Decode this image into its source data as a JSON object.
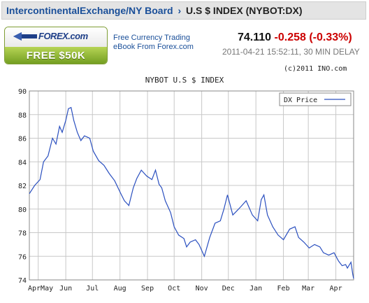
{
  "header": {
    "link_label": "IntercontinentalExchange/NY Board",
    "separator": "›",
    "current": "U.S $ INDEX (NYBOT:DX)"
  },
  "ad": {
    "logo_text": "FOREX.com",
    "button_label": "FREE $50K",
    "brand_color": "#1e3f88",
    "button_color": "#8db431"
  },
  "promo": {
    "line1": "Free Currency Trading",
    "line2": "eBook From Forex.com"
  },
  "quote": {
    "last": "74.110",
    "change": "-0.258 (-0.33%)",
    "timestamp": "2011-04-21 15:52:11, 30 MIN DELAY",
    "change_color": "#cc0000"
  },
  "chart_data": {
    "type": "line",
    "title": "NYBOT U.S $ INDEX",
    "copyright": "(c)2011 INO.com",
    "legend": "DX Price",
    "legend_position": "top-right",
    "grid": true,
    "line_color": "#2a4fbf",
    "ylim": [
      74,
      90
    ],
    "yticks": [
      74,
      76,
      78,
      80,
      82,
      84,
      86,
      88,
      90
    ],
    "xticks": [
      "AprMay",
      "Jun",
      "Jul",
      "Aug",
      "Sep",
      "Oct",
      "Nov",
      "Dec",
      "Jan",
      "Feb",
      "Mar",
      "Apr"
    ],
    "series": [
      {
        "name": "DX Price",
        "points": [
          [
            "2010-04-21",
            81.3
          ],
          [
            "2010-04-27",
            82.0
          ],
          [
            "2010-05-03",
            82.5
          ],
          [
            "2010-05-07",
            84.0
          ],
          [
            "2010-05-12",
            84.5
          ],
          [
            "2010-05-17",
            86.0
          ],
          [
            "2010-05-21",
            85.5
          ],
          [
            "2010-05-25",
            87.0
          ],
          [
            "2010-05-28",
            86.5
          ],
          [
            "2010-06-01",
            87.5
          ],
          [
            "2010-06-04",
            88.5
          ],
          [
            "2010-06-07",
            88.6
          ],
          [
            "2010-06-10",
            87.5
          ],
          [
            "2010-06-14",
            86.5
          ],
          [
            "2010-06-18",
            85.8
          ],
          [
            "2010-06-22",
            86.2
          ],
          [
            "2010-06-28",
            86.0
          ],
          [
            "2010-07-02",
            84.9
          ],
          [
            "2010-07-08",
            84.1
          ],
          [
            "2010-07-14",
            83.7
          ],
          [
            "2010-07-20",
            83.0
          ],
          [
            "2010-07-26",
            82.4
          ],
          [
            "2010-08-02",
            81.3
          ],
          [
            "2010-08-06",
            80.7
          ],
          [
            "2010-08-11",
            80.3
          ],
          [
            "2010-08-16",
            81.8
          ],
          [
            "2010-08-20",
            82.6
          ],
          [
            "2010-08-25",
            83.3
          ],
          [
            "2010-08-31",
            82.8
          ],
          [
            "2010-09-06",
            82.5
          ],
          [
            "2010-09-10",
            83.3
          ],
          [
            "2010-09-14",
            82.1
          ],
          [
            "2010-09-17",
            81.8
          ],
          [
            "2010-09-21",
            80.7
          ],
          [
            "2010-09-27",
            79.7
          ],
          [
            "2010-10-01",
            78.5
          ],
          [
            "2010-10-06",
            77.8
          ],
          [
            "2010-10-12",
            77.5
          ],
          [
            "2010-10-15",
            76.8
          ],
          [
            "2010-10-19",
            77.2
          ],
          [
            "2010-10-25",
            77.4
          ],
          [
            "2010-10-29",
            77.0
          ],
          [
            "2010-11-04",
            76.0
          ],
          [
            "2010-11-10",
            77.6
          ],
          [
            "2010-11-16",
            78.8
          ],
          [
            "2010-11-22",
            79.0
          ],
          [
            "2010-11-26",
            80.0
          ],
          [
            "2010-11-30",
            81.2
          ],
          [
            "2010-12-06",
            79.5
          ],
          [
            "2010-12-10",
            79.8
          ],
          [
            "2010-12-15",
            80.2
          ],
          [
            "2010-12-21",
            80.7
          ],
          [
            "2010-12-28",
            79.5
          ],
          [
            "2011-01-03",
            79.0
          ],
          [
            "2011-01-07",
            80.8
          ],
          [
            "2011-01-10",
            81.2
          ],
          [
            "2011-01-14",
            79.5
          ],
          [
            "2011-01-20",
            78.5
          ],
          [
            "2011-01-26",
            77.8
          ],
          [
            "2011-02-01",
            77.4
          ],
          [
            "2011-02-08",
            78.3
          ],
          [
            "2011-02-14",
            78.5
          ],
          [
            "2011-02-18",
            77.6
          ],
          [
            "2011-02-24",
            77.2
          ],
          [
            "2011-03-02",
            76.7
          ],
          [
            "2011-03-08",
            77.0
          ],
          [
            "2011-03-14",
            76.8
          ],
          [
            "2011-03-18",
            76.3
          ],
          [
            "2011-03-24",
            76.1
          ],
          [
            "2011-03-30",
            76.3
          ],
          [
            "2011-04-04",
            75.6
          ],
          [
            "2011-04-08",
            75.2
          ],
          [
            "2011-04-12",
            75.3
          ],
          [
            "2011-04-14",
            75.0
          ],
          [
            "2011-04-18",
            75.5
          ],
          [
            "2011-04-20",
            74.5
          ],
          [
            "2011-04-21",
            74.11
          ]
        ]
      }
    ]
  }
}
